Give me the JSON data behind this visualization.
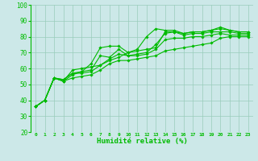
{
  "xlabel": "Humidité relative (%)",
  "xlim": [
    -0.5,
    23.5
  ],
  "ylim": [
    20,
    100
  ],
  "xticks": [
    0,
    1,
    2,
    3,
    4,
    5,
    6,
    7,
    8,
    9,
    10,
    11,
    12,
    13,
    14,
    15,
    16,
    17,
    18,
    19,
    20,
    21,
    22,
    23
  ],
  "yticks": [
    20,
    30,
    40,
    50,
    60,
    70,
    80,
    90,
    100
  ],
  "bg_color": "#cce8e8",
  "line_color": "#00bb00",
  "grid_color": "#99ccbb",
  "lines": [
    [
      36,
      40,
      54,
      52,
      59,
      60,
      61,
      62,
      65,
      67,
      70,
      72,
      80,
      85,
      84,
      84,
      82,
      83,
      83,
      84,
      86,
      84,
      83,
      83
    ],
    [
      36,
      40,
      54,
      52,
      56,
      58,
      63,
      73,
      74,
      74,
      70,
      71,
      72,
      73,
      83,
      83,
      82,
      83,
      83,
      84,
      85,
      84,
      83,
      83
    ],
    [
      36,
      40,
      54,
      53,
      57,
      58,
      59,
      68,
      67,
      72,
      68,
      69,
      70,
      75,
      82,
      83,
      81,
      82,
      82,
      83,
      83,
      83,
      82,
      82
    ],
    [
      36,
      40,
      54,
      53,
      57,
      57,
      58,
      62,
      66,
      69,
      68,
      68,
      69,
      72,
      78,
      79,
      79,
      80,
      80,
      81,
      82,
      81,
      81,
      81
    ],
    [
      36,
      40,
      54,
      52,
      54,
      55,
      56,
      59,
      63,
      65,
      65,
      66,
      67,
      68,
      71,
      72,
      73,
      74,
      75,
      76,
      79,
      80,
      80,
      80
    ]
  ]
}
